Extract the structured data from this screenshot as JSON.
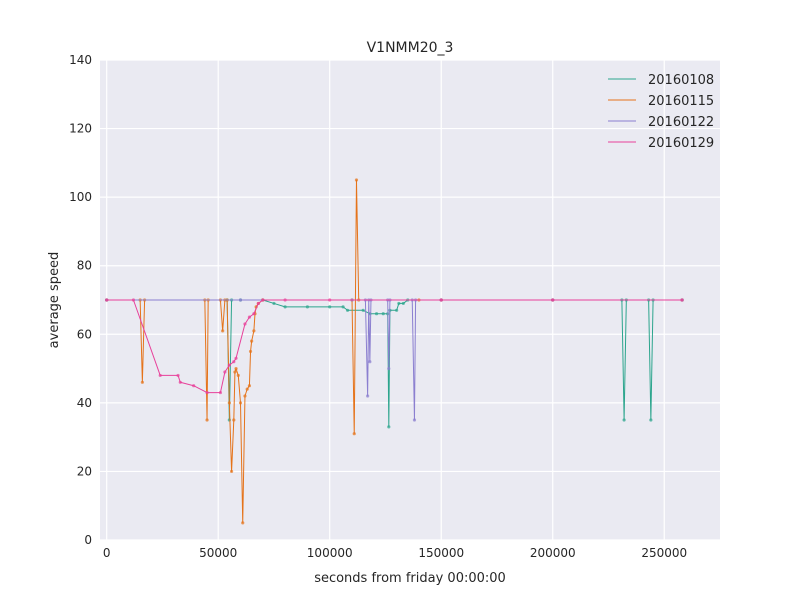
{
  "chart_data": {
    "type": "line",
    "title": "V1NMM20_3",
    "xlabel": "seconds from friday 00:00:00",
    "ylabel": "average speed",
    "xlim": [
      -3000,
      275000
    ],
    "ylim": [
      0,
      140
    ],
    "xticks": [
      0,
      50000,
      100000,
      150000,
      200000,
      250000
    ],
    "yticks": [
      0,
      20,
      40,
      60,
      80,
      100,
      120,
      140
    ],
    "grid": true,
    "legend_position": "top-right",
    "series": [
      {
        "name": "20160108",
        "color": "#2ca58d",
        "points": [
          [
            0,
            70
          ],
          [
            54000,
            70
          ],
          [
            55000,
            35
          ],
          [
            56000,
            70
          ],
          [
            60000,
            70
          ],
          [
            70000,
            70
          ],
          [
            75000,
            69
          ],
          [
            80000,
            68
          ],
          [
            90000,
            68
          ],
          [
            100000,
            68
          ],
          [
            106000,
            68
          ],
          [
            108000,
            67
          ],
          [
            115000,
            67
          ],
          [
            118000,
            66
          ],
          [
            121000,
            66
          ],
          [
            124000,
            66
          ],
          [
            126000,
            66
          ],
          [
            126500,
            33
          ],
          [
            127000,
            67
          ],
          [
            130000,
            67
          ],
          [
            131000,
            69
          ],
          [
            133000,
            69
          ],
          [
            135000,
            70
          ],
          [
            150000,
            70
          ],
          [
            200000,
            70
          ],
          [
            231000,
            70
          ],
          [
            232000,
            35
          ],
          [
            233000,
            70
          ],
          [
            243000,
            70
          ],
          [
            244000,
            35
          ],
          [
            245000,
            70
          ],
          [
            258000,
            70
          ]
        ]
      },
      {
        "name": "20160115",
        "color": "#e5731a",
        "points": [
          [
            0,
            70
          ],
          [
            15000,
            70
          ],
          [
            16000,
            46
          ],
          [
            17000,
            70
          ],
          [
            44000,
            70
          ],
          [
            45000,
            35
          ],
          [
            45500,
            70
          ],
          [
            51000,
            70
          ],
          [
            52000,
            61
          ],
          [
            53000,
            70
          ],
          [
            54000,
            70
          ],
          [
            55000,
            40
          ],
          [
            56000,
            20
          ],
          [
            57000,
            35
          ],
          [
            57500,
            49
          ],
          [
            58000,
            50
          ],
          [
            59000,
            48
          ],
          [
            60000,
            40
          ],
          [
            61000,
            5
          ],
          [
            62000,
            42
          ],
          [
            63000,
            44
          ],
          [
            64000,
            45
          ],
          [
            64500,
            55
          ],
          [
            65000,
            58
          ],
          [
            66000,
            61
          ],
          [
            66500,
            66
          ],
          [
            67000,
            68
          ],
          [
            68000,
            69
          ],
          [
            70000,
            70
          ],
          [
            110000,
            70
          ],
          [
            111000,
            31
          ],
          [
            112000,
            105
          ],
          [
            113000,
            70
          ],
          [
            140000,
            70
          ],
          [
            150000,
            70
          ],
          [
            200000,
            70
          ],
          [
            258000,
            70
          ]
        ]
      },
      {
        "name": "20160122",
        "color": "#8b7fd0",
        "points": [
          [
            0,
            70
          ],
          [
            60000,
            70
          ],
          [
            110000,
            70
          ],
          [
            116000,
            70
          ],
          [
            117000,
            42
          ],
          [
            117500,
            70
          ],
          [
            118000,
            52
          ],
          [
            118500,
            70
          ],
          [
            126000,
            70
          ],
          [
            126500,
            50
          ],
          [
            127000,
            70
          ],
          [
            137000,
            70
          ],
          [
            138000,
            35
          ],
          [
            138500,
            70
          ],
          [
            150000,
            70
          ],
          [
            200000,
            70
          ],
          [
            258000,
            70
          ]
        ]
      },
      {
        "name": "20160129",
        "color": "#e8409a",
        "points": [
          [
            0,
            70
          ],
          [
            12000,
            70
          ],
          [
            24000,
            48
          ],
          [
            32000,
            48
          ],
          [
            33000,
            46
          ],
          [
            39000,
            45
          ],
          [
            45000,
            43
          ],
          [
            51000,
            43
          ],
          [
            53000,
            49
          ],
          [
            55000,
            51
          ],
          [
            57000,
            52
          ],
          [
            58000,
            53
          ],
          [
            62000,
            63
          ],
          [
            64000,
            65
          ],
          [
            66000,
            66
          ],
          [
            68000,
            69
          ],
          [
            70000,
            70
          ],
          [
            80000,
            70
          ],
          [
            100000,
            70
          ],
          [
            150000,
            70
          ],
          [
            200000,
            70
          ],
          [
            258000,
            70
          ]
        ]
      }
    ]
  }
}
